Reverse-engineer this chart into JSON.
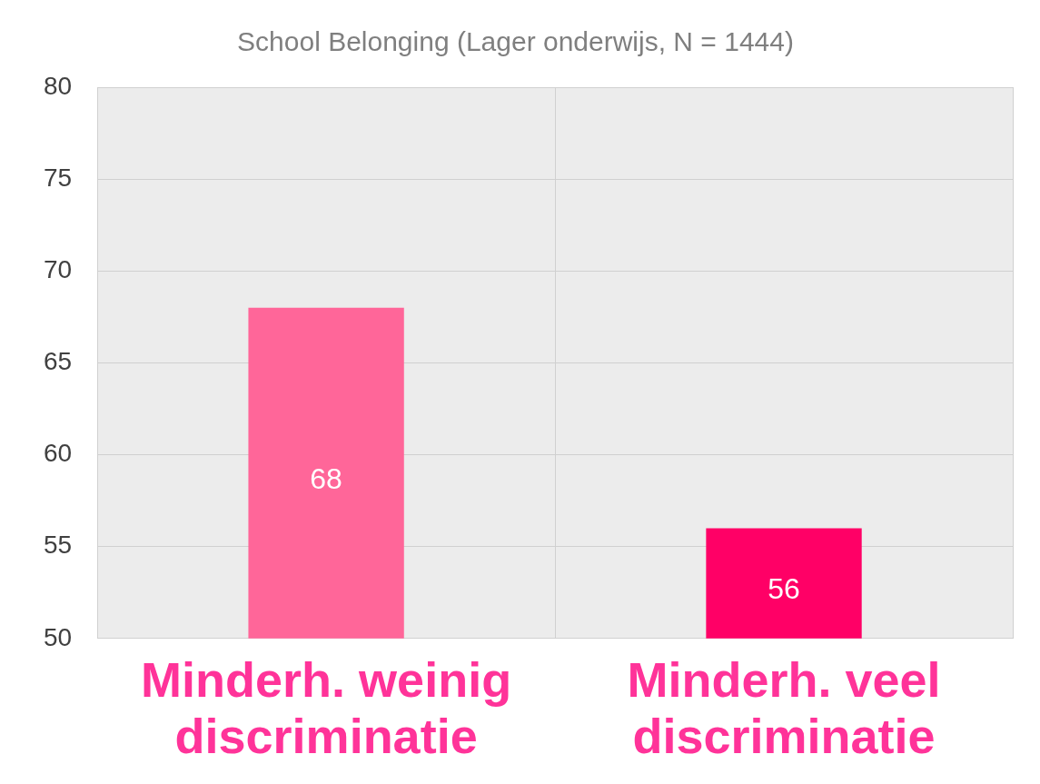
{
  "chart_data": {
    "type": "bar",
    "title": "School Belonging (Lager onderwijs, N = 1444)",
    "categories": [
      "Minderh. weinig discriminatie",
      "Minderh. veel discriminatie"
    ],
    "values": [
      68,
      56
    ],
    "colors": [
      "#ff6699",
      "#ff0066"
    ],
    "ylim": [
      50,
      80
    ],
    "yticks": [
      50,
      55,
      60,
      65,
      70,
      75,
      80
    ],
    "grid": true,
    "data_labels": true,
    "legend": false
  }
}
